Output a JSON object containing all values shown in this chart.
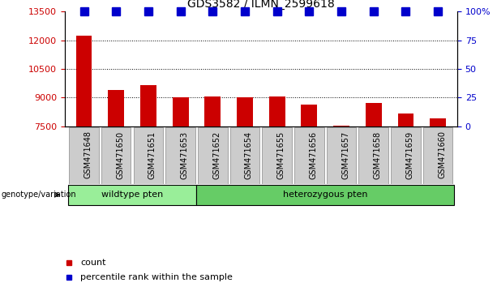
{
  "title": "GDS3582 / ILMN_2599618",
  "categories": [
    "GSM471648",
    "GSM471650",
    "GSM471651",
    "GSM471653",
    "GSM471652",
    "GSM471654",
    "GSM471655",
    "GSM471656",
    "GSM471657",
    "GSM471658",
    "GSM471659",
    "GSM471660"
  ],
  "bar_values": [
    12250,
    9400,
    9650,
    9000,
    9050,
    9000,
    9050,
    8650,
    7550,
    8700,
    8150,
    7900
  ],
  "percentile_values": [
    100,
    100,
    100,
    100,
    100,
    100,
    100,
    100,
    100,
    100,
    100,
    100
  ],
  "bar_color": "#cc0000",
  "percentile_color": "#0000cc",
  "ylim_left": [
    7500,
    13500
  ],
  "ylim_right": [
    0,
    100
  ],
  "yticks_left": [
    7500,
    9000,
    10500,
    12000,
    13500
  ],
  "ytick_labels_left": [
    "7500",
    "9000",
    "10500",
    "12000",
    "13500"
  ],
  "yticks_right": [
    0,
    25,
    50,
    75,
    100
  ],
  "ytick_labels_right": [
    "0",
    "25",
    "50",
    "75",
    "100%"
  ],
  "grid_values": [
    9000,
    10500,
    12000
  ],
  "wildtype_label": "wildtype pten",
  "heterozygous_label": "heterozygous pten",
  "wildtype_count": 4,
  "heterozygous_count": 8,
  "wildtype_color": "#99ee99",
  "heterozygous_color": "#66cc66",
  "group_label": "genotype/variation",
  "legend_count_label": "count",
  "legend_percentile_label": "percentile rank within the sample",
  "bg_color": "#ffffff",
  "tick_color_left": "#cc0000",
  "tick_color_right": "#0000cc",
  "bar_width": 0.5,
  "percentile_marker_size": 7,
  "xlabel_bg_color": "#cccccc",
  "title_fontsize": 10,
  "axis_fontsize": 8
}
